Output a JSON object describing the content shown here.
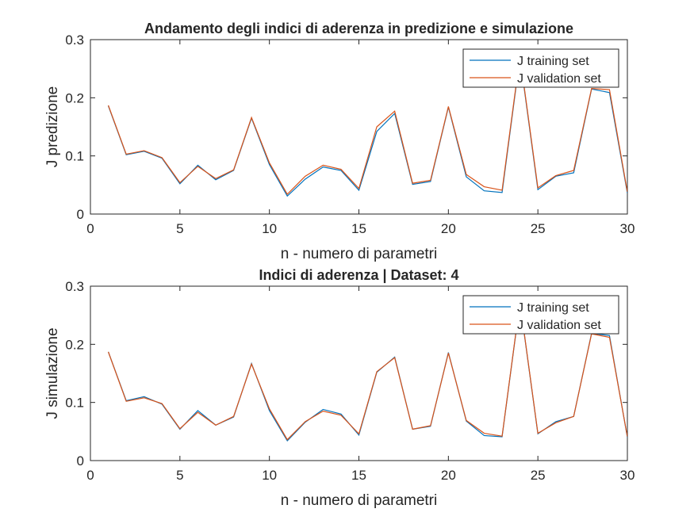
{
  "chart_data": [
    {
      "type": "line",
      "title": "Andamento degli indici di aderenza in predizione e simulazione",
      "xlabel": "n - numero di parametri",
      "ylabel": "J predizione",
      "xlim": [
        0,
        30
      ],
      "ylim": [
        0,
        0.3
      ],
      "xticks": [
        "0",
        "5",
        "10",
        "15",
        "20",
        "25",
        "30"
      ],
      "yticks": [
        "0",
        "0.1",
        "0.2",
        "0.3"
      ],
      "grid": false,
      "legend": "top-right",
      "x": [
        1,
        2,
        3,
        4,
        5,
        6,
        7,
        8,
        9,
        10,
        11,
        12,
        13,
        14,
        15,
        16,
        17,
        18,
        19,
        20,
        21,
        22,
        23,
        24,
        25,
        26,
        27,
        28,
        29,
        30
      ],
      "series": [
        {
          "name": "J training set",
          "color": "#0072BD",
          "values": [
            0.186,
            0.102,
            0.108,
            0.096,
            0.052,
            0.084,
            0.059,
            0.075,
            0.165,
            0.085,
            0.031,
            0.06,
            0.081,
            0.075,
            0.041,
            0.142,
            0.173,
            0.051,
            0.056,
            0.184,
            0.064,
            0.04,
            0.037,
            0.27,
            0.042,
            0.065,
            0.071,
            0.215,
            0.209,
            0.036
          ]
        },
        {
          "name": "J validation set",
          "color": "#D95319",
          "values": [
            0.187,
            0.103,
            0.109,
            0.097,
            0.054,
            0.082,
            0.061,
            0.076,
            0.166,
            0.088,
            0.034,
            0.065,
            0.084,
            0.077,
            0.044,
            0.15,
            0.177,
            0.053,
            0.058,
            0.185,
            0.068,
            0.047,
            0.041,
            0.272,
            0.045,
            0.066,
            0.075,
            0.216,
            0.214,
            0.038
          ]
        }
      ]
    },
    {
      "type": "line",
      "title": "Indici di aderenza | Dataset: 4",
      "xlabel": "n - numero di parametri",
      "ylabel": "J simulazione",
      "xlim": [
        0,
        30
      ],
      "ylim": [
        0,
        0.3
      ],
      "xticks": [
        "0",
        "5",
        "10",
        "15",
        "20",
        "25",
        "30"
      ],
      "yticks": [
        "0",
        "0.1",
        "0.2",
        "0.3"
      ],
      "grid": false,
      "legend": "top-right",
      "x": [
        1,
        2,
        3,
        4,
        5,
        6,
        7,
        8,
        9,
        10,
        11,
        12,
        13,
        14,
        15,
        16,
        17,
        18,
        19,
        20,
        21,
        22,
        23,
        24,
        25,
        26,
        27,
        28,
        29,
        30
      ],
      "series": [
        {
          "name": "J training set",
          "color": "#0072BD",
          "values": [
            0.187,
            0.103,
            0.11,
            0.097,
            0.054,
            0.086,
            0.061,
            0.075,
            0.167,
            0.086,
            0.034,
            0.066,
            0.088,
            0.08,
            0.044,
            0.152,
            0.178,
            0.054,
            0.059,
            0.186,
            0.068,
            0.043,
            0.041,
            0.272,
            0.046,
            0.067,
            0.076,
            0.219,
            0.215,
            0.04
          ]
        },
        {
          "name": "J validation set",
          "color": "#D95319",
          "values": [
            0.187,
            0.102,
            0.108,
            0.098,
            0.055,
            0.083,
            0.061,
            0.076,
            0.166,
            0.089,
            0.036,
            0.067,
            0.085,
            0.078,
            0.046,
            0.153,
            0.177,
            0.054,
            0.06,
            0.185,
            0.069,
            0.047,
            0.042,
            0.273,
            0.047,
            0.065,
            0.076,
            0.218,
            0.212,
            0.041
          ]
        }
      ]
    }
  ]
}
